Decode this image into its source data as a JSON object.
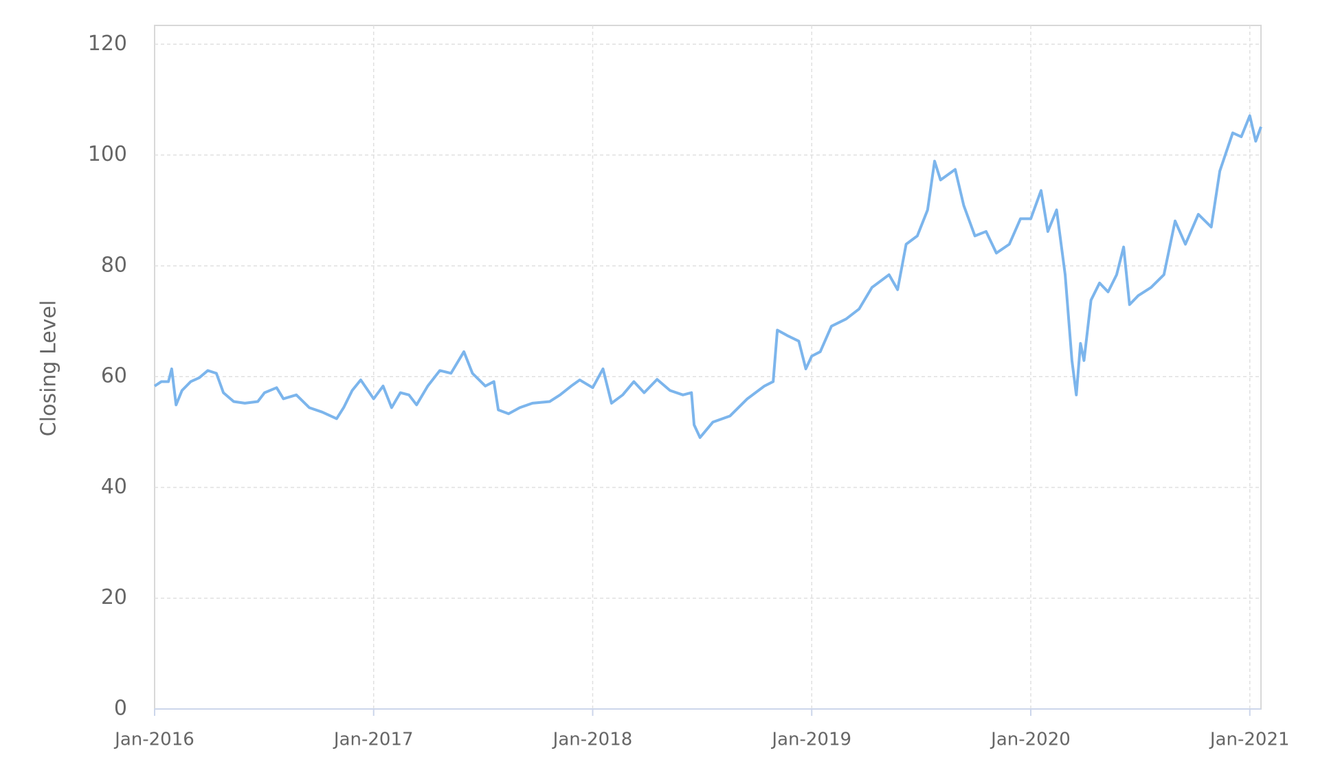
{
  "chart_data": {
    "type": "line",
    "y_label": "Closing Level",
    "x": [
      2016.0,
      2016.031,
      2016.063,
      2016.078,
      2016.098,
      2016.125,
      2016.165,
      2016.204,
      2016.243,
      2016.282,
      2016.314,
      2016.361,
      2016.412,
      2016.471,
      2016.502,
      2016.557,
      2016.588,
      2016.647,
      2016.706,
      2016.765,
      2016.831,
      2016.863,
      2016.902,
      2016.941,
      2017.0,
      2017.043,
      2017.082,
      2017.122,
      2017.161,
      2017.196,
      2017.247,
      2017.302,
      2017.353,
      2017.412,
      2017.451,
      2017.51,
      2017.549,
      2017.569,
      2017.616,
      2017.667,
      2017.725,
      2017.804,
      2017.851,
      2017.902,
      2017.941,
      2018.0,
      2018.047,
      2018.086,
      2018.137,
      2018.188,
      2018.235,
      2018.294,
      2018.353,
      2018.412,
      2018.451,
      2018.463,
      2018.49,
      2018.549,
      2018.627,
      2018.706,
      2018.784,
      2018.824,
      2018.843,
      2018.894,
      2018.941,
      2018.973,
      2019.0,
      2019.039,
      2019.09,
      2019.157,
      2019.216,
      2019.275,
      2019.353,
      2019.392,
      2019.431,
      2019.482,
      2019.529,
      2019.561,
      2019.588,
      2019.655,
      2019.694,
      2019.745,
      2019.796,
      2019.843,
      2019.902,
      2019.953,
      2020.0,
      2020.047,
      2020.078,
      2020.118,
      2020.157,
      2020.188,
      2020.208,
      2020.227,
      2020.243,
      2020.275,
      2020.314,
      2020.353,
      2020.392,
      2020.424,
      2020.451,
      2020.49,
      2020.549,
      2020.608,
      2020.659,
      2020.706,
      2020.765,
      2020.824,
      2020.863,
      2020.922,
      2020.961,
      2021.0,
      2021.027,
      2021.051
    ],
    "series": [
      {
        "color": "#7cb5ec",
        "values": [
          58.3,
          59.1,
          59.1,
          61.4,
          54.9,
          57.5,
          59.1,
          59.8,
          61.1,
          60.6,
          57.1,
          55.5,
          55.2,
          55.5,
          57.1,
          58.0,
          56.0,
          56.7,
          54.4,
          53.6,
          52.4,
          54.4,
          57.5,
          59.4,
          56.0,
          58.3,
          54.4,
          57.1,
          56.7,
          54.9,
          58.3,
          61.1,
          60.6,
          64.5,
          60.6,
          58.3,
          59.1,
          54.0,
          53.3,
          54.4,
          55.2,
          55.5,
          56.7,
          58.3,
          59.4,
          58.0,
          61.4,
          55.2,
          56.7,
          59.1,
          57.1,
          59.5,
          57.5,
          56.7,
          57.1,
          51.3,
          49.0,
          51.8,
          52.9,
          56.0,
          58.3,
          59.1,
          68.4,
          67.3,
          66.4,
          61.4,
          63.7,
          64.5,
          69.1,
          70.4,
          72.2,
          76.1,
          78.4,
          75.7,
          83.9,
          85.4,
          90.1,
          98.9,
          95.5,
          97.4,
          90.9,
          85.4,
          86.2,
          82.3,
          83.9,
          88.5,
          88.5,
          93.6,
          86.2,
          90.1,
          78.4,
          62.9,
          56.7,
          66.0,
          62.9,
          73.8,
          76.9,
          75.3,
          78.4,
          83.4,
          73.0,
          74.6,
          76.1,
          78.4,
          88.1,
          83.9,
          89.3,
          87.0,
          97.1,
          104.0,
          103.3,
          107.1,
          102.5,
          105.1
        ]
      }
    ],
    "xlim": [
      2016,
      2021.051
    ],
    "xticks": [
      {
        "value": 2016,
        "label": "Jan-2016"
      },
      {
        "value": 2017,
        "label": "Jan-2017"
      },
      {
        "value": 2018,
        "label": "Jan-2018"
      },
      {
        "value": 2019,
        "label": "Jan-2019"
      },
      {
        "value": 2020,
        "label": "Jan-2020"
      },
      {
        "value": 2021,
        "label": "Jan-2021"
      }
    ],
    "ylim": [
      0,
      123.4
    ],
    "yticks": [
      0,
      20,
      40,
      60,
      80,
      100,
      120
    ],
    "grid": true
  }
}
